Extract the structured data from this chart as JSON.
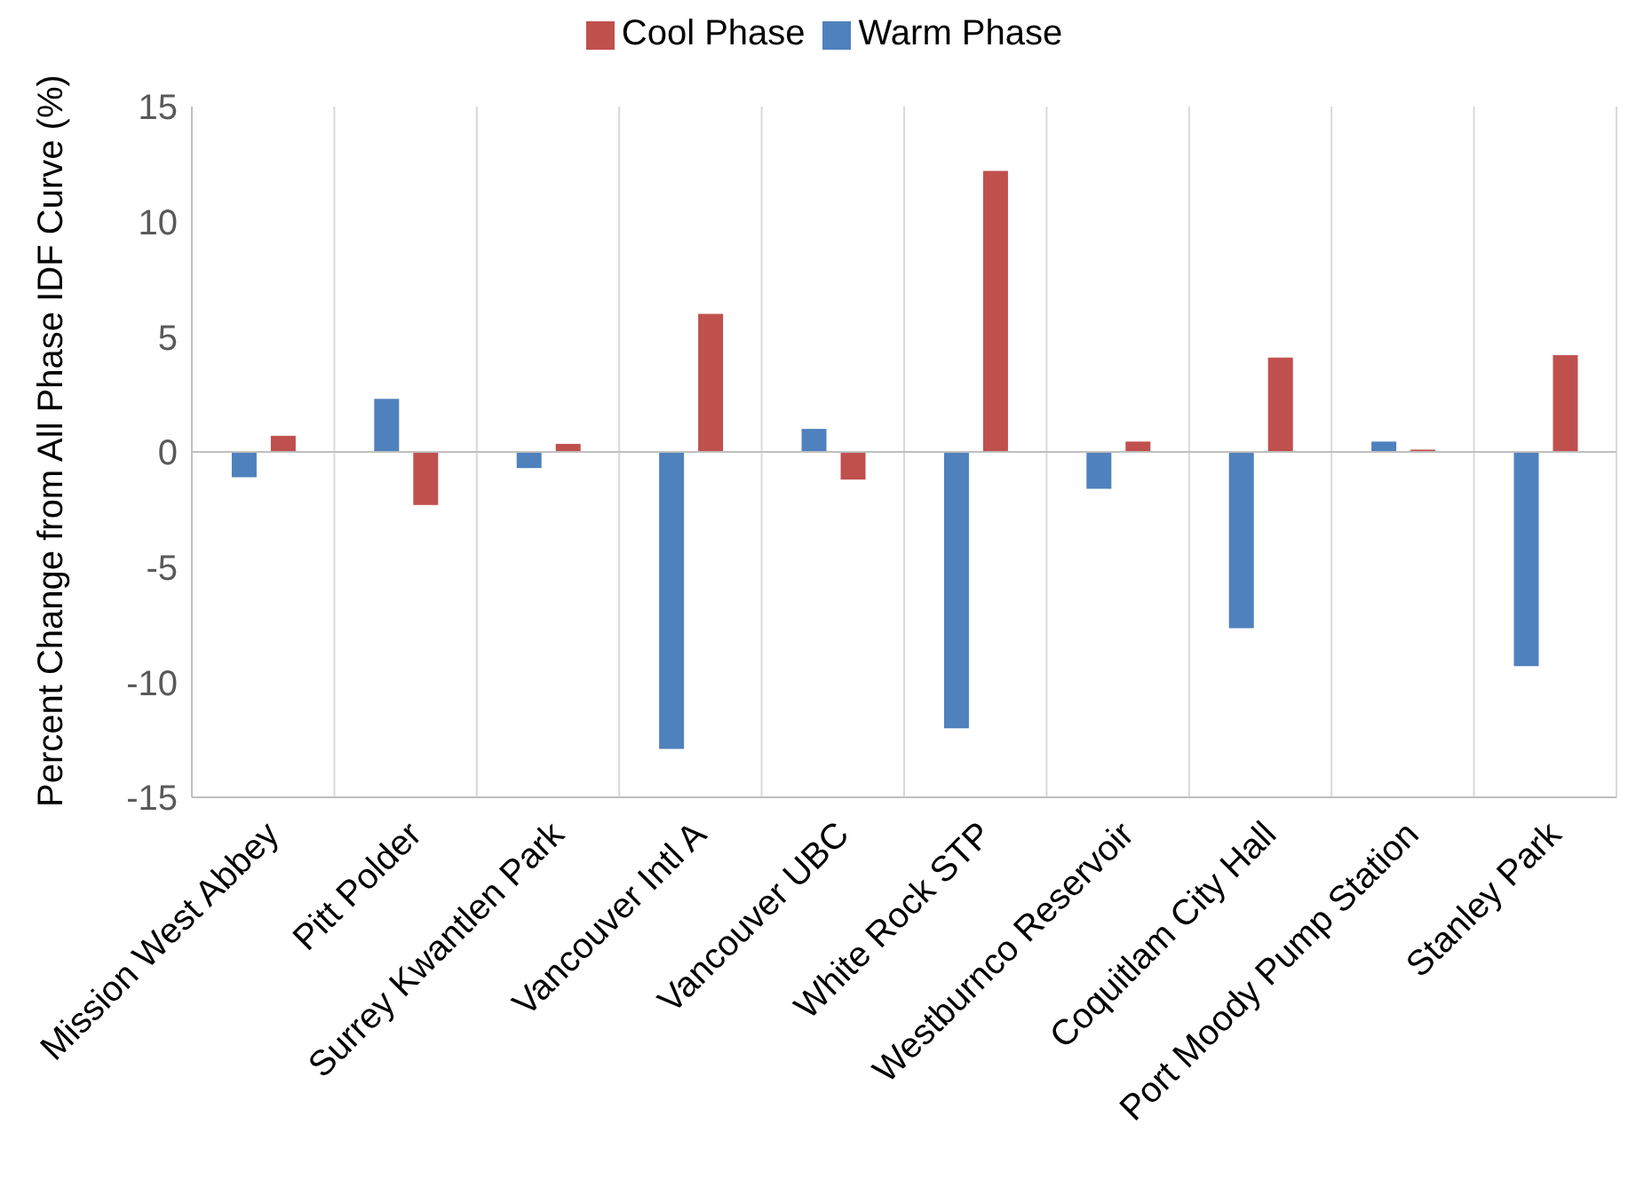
{
  "chart_data": {
    "type": "bar",
    "ylabel": "Percent Change from All Phase IDF Curve (%)",
    "categories": [
      "Mission West Abbey",
      "Pitt Polder",
      "Surrey Kwantlen Park",
      "Vancouver Intl A",
      "Vancouver UBC",
      "White Rock STP",
      "Westburnco Reservoir",
      "Coquitlam City Hall",
      "Port Moody Pump Station",
      "Stanley Park"
    ],
    "series": [
      {
        "name": "Warm Phase",
        "color": "#4f81bd",
        "values": [
          -1.1,
          2.3,
          -0.7,
          -12.9,
          1.0,
          -12.0,
          -1.6,
          -7.65,
          0.45,
          -9.3
        ]
      },
      {
        "name": "Cool Phase",
        "color": "#c0504d",
        "values": [
          0.7,
          -2.3,
          0.35,
          6.0,
          -1.2,
          12.2,
          0.45,
          4.1,
          0.1,
          4.2
        ]
      }
    ],
    "ylim": [
      -15,
      15
    ],
    "yticks": [
      -15,
      -10,
      -5,
      0,
      5,
      10,
      15
    ],
    "grid": "x",
    "legend": "top"
  }
}
